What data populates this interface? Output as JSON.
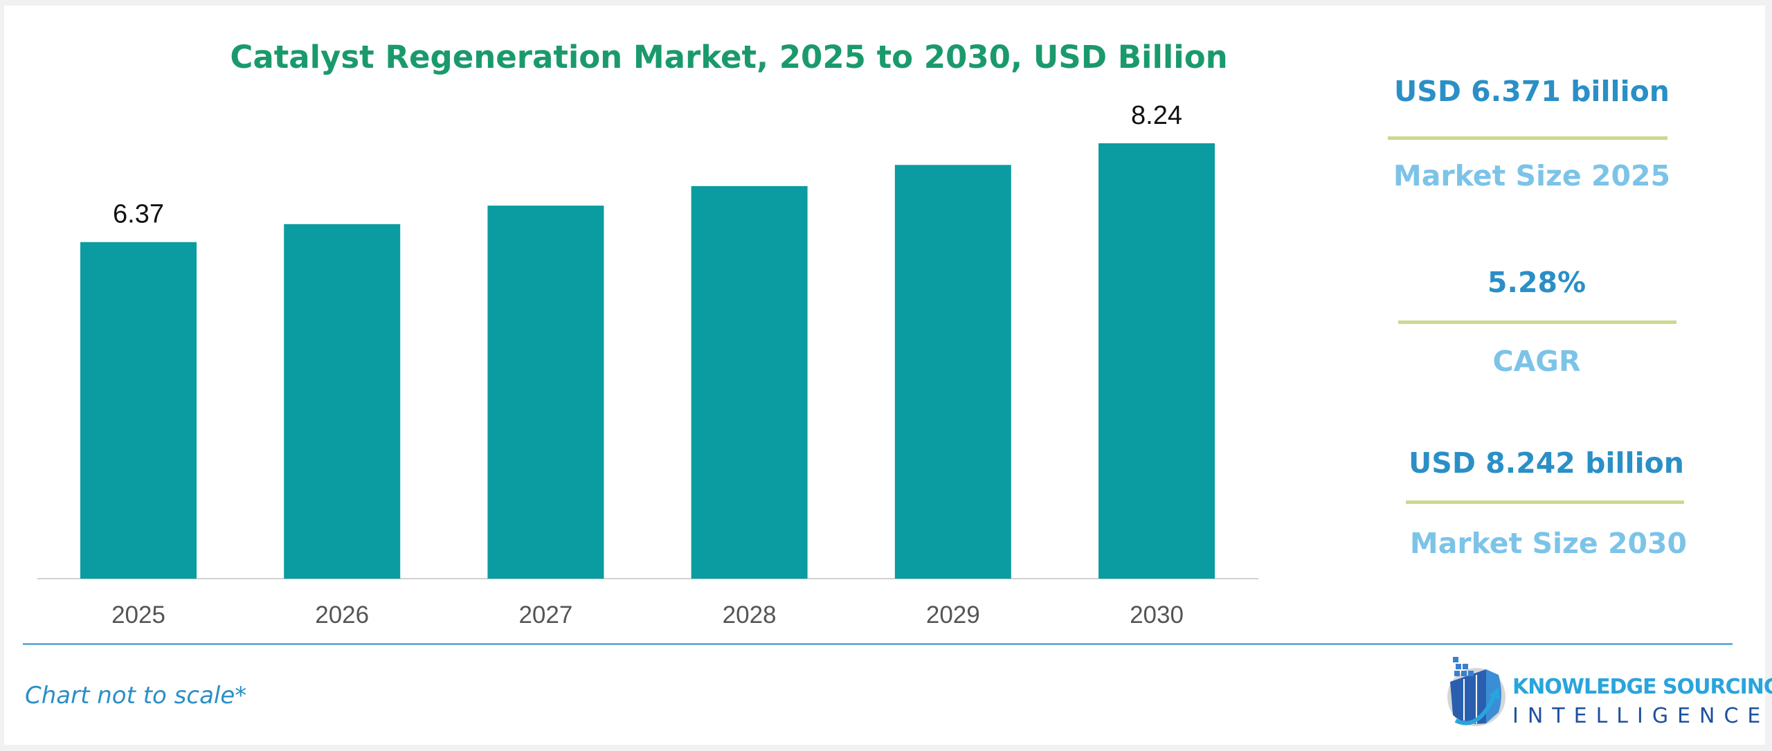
{
  "chart_data": {
    "type": "bar",
    "title": "Catalyst Regeneration Market, 2025 to 2030, USD Billion",
    "categories": [
      "2025",
      "2026",
      "2027",
      "2028",
      "2029",
      "2030"
    ],
    "values": [
      6.37,
      6.71,
      7.06,
      7.43,
      7.83,
      8.24
    ],
    "data_labels": {
      "2025": "6.37",
      "2030": "8.24"
    },
    "xlabel": "",
    "ylabel": "",
    "ylim": [
      0,
      8.24
    ],
    "grid": false,
    "bar_color": "#0a9ca0"
  },
  "stats": {
    "market_size_2025_value": "USD 6.371 billion",
    "market_size_2025_label": "Market Size 2025",
    "cagr_value": "5.28%",
    "cagr_label": "CAGR",
    "market_size_2030_value": "USD 8.242 billion",
    "market_size_2030_label": "Market Size 2030"
  },
  "footer": {
    "note": "Chart not to scale*",
    "logo_line1": "KNOWLEDGE SOURCING",
    "logo_line2": "INTELLIGENCE"
  },
  "colors": {
    "title": "#1a9a6c",
    "stat_value": "#2a8fc6",
    "stat_label": "#7cc3e8",
    "separator": "#cbd98f"
  }
}
